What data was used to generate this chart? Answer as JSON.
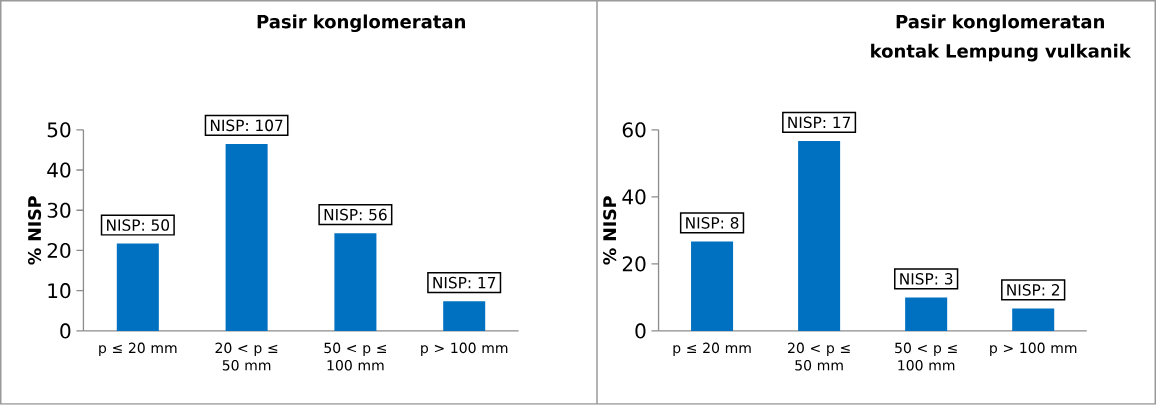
{
  "chart_data": [
    {
      "type": "bar",
      "title": "Pasir konglomeratan",
      "ylabel": "% NISP",
      "categories": [
        "p ≤ 20 mm",
        "20 < p ≤ 50 mm",
        "50 < p ≤ 100 mm",
        "p > 100 mm"
      ],
      "values": [
        21.7,
        46.5,
        24.3,
        7.4
      ],
      "color": "#0070c0",
      "ylim": [
        0,
        50
      ],
      "yticks": [
        0,
        10,
        20,
        30,
        40,
        50
      ],
      "annotations": [
        {
          "text": "NISP: 50",
          "x": "p ≤ 20 mm",
          "y": 21.7
        },
        {
          "text": "NISP: 107",
          "x": "20 < p ≤ 50 mm",
          "y": 46.5
        },
        {
          "text": "NISP: 56",
          "x": "50 < p ≤ 100 mm",
          "y": 24.3
        },
        {
          "text": "NISP: 17",
          "x": "p > 100 mm",
          "y": 7.4
        }
      ]
    },
    {
      "type": "bar",
      "title": "Pasir konglomeratan kontak Lempung vulkanik",
      "ylabel": "% NISP",
      "categories": [
        "p ≤ 20 mm",
        "20 < p ≤ 50 mm",
        "50 < p ≤ 100 mm",
        "p > 100 mm"
      ],
      "values": [
        26.7,
        56.7,
        10,
        6.7
      ],
      "color": "#0070c0",
      "ylim": [
        0,
        60
      ],
      "yticks": [
        0,
        20,
        40,
        60
      ],
      "annotations": [
        {
          "text": "NISP: 8",
          "x": "p ≤ 20 mm",
          "y": 26.7
        },
        {
          "text": "NISP: 17",
          "x": "20 < p ≤ 50 mm",
          "y": 56.7
        },
        {
          "text": "NISP: 3",
          "x": "50 < p ≤ 100 mm",
          "y": 10
        },
        {
          "text": "NISP: 2",
          "x": "p > 100 mm",
          "y": 6.7
        }
      ]
    }
  ]
}
